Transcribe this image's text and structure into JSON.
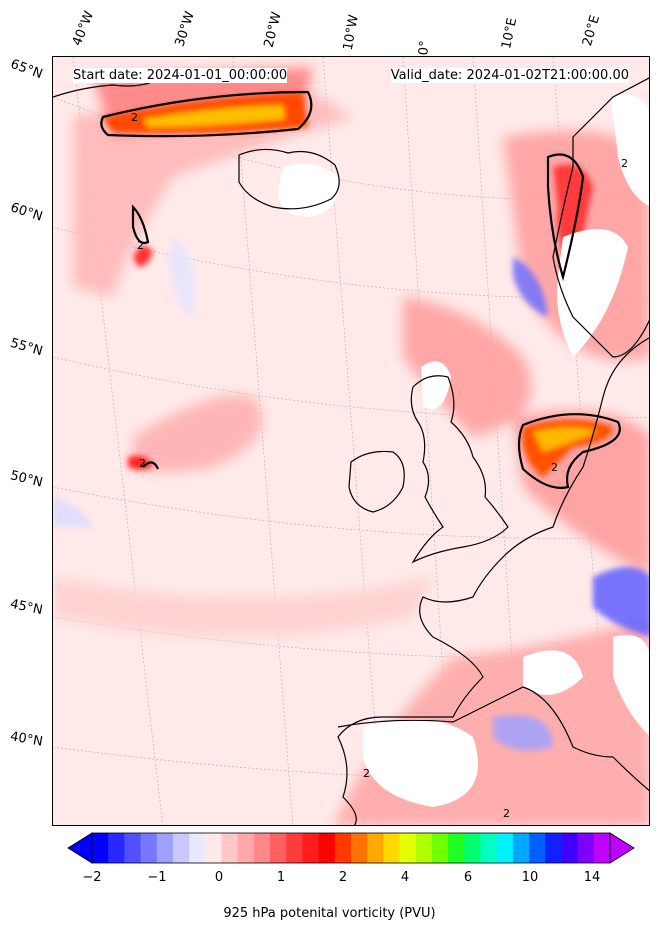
{
  "header": {
    "start_date": "Start date: 2024-01-01_00:00:00",
    "valid_date": "Valid_date: 2024-01-02T21:00:00.00"
  },
  "longitude_labels": [
    "40°W",
    "30°W",
    "20°W",
    "10°W",
    "0°",
    "10°E",
    "20°E"
  ],
  "latitude_labels": [
    "65°N",
    "60°N",
    "55°N",
    "50°N",
    "45°N",
    "40°N"
  ],
  "contour_label": "2",
  "colorbar": {
    "label": "925 hPa potenital vorticity (PVU)",
    "ticks": [
      "−2",
      "−1",
      "0",
      "1",
      "2",
      "4",
      "6",
      "10",
      "14"
    ],
    "colors": [
      "#0000ff",
      "#2828ff",
      "#5050ff",
      "#7878ff",
      "#a0a0ff",
      "#c8c8ff",
      "#e8e8ff",
      "#ffe8e8",
      "#ffc8c8",
      "#ffa8a8",
      "#ff8888",
      "#ff6060",
      "#ff3c3c",
      "#ff1c1c",
      "#ff0000",
      "#ff3a00",
      "#ff7200",
      "#ffa800",
      "#ffd800",
      "#e6ff00",
      "#b0ff00",
      "#70ff00",
      "#20ff20",
      "#00ff70",
      "#00ffc0",
      "#00f0ff",
      "#00a8ff",
      "#0060ff",
      "#1020ff",
      "#4000ff",
      "#8000ff",
      "#c000ff"
    ]
  }
}
